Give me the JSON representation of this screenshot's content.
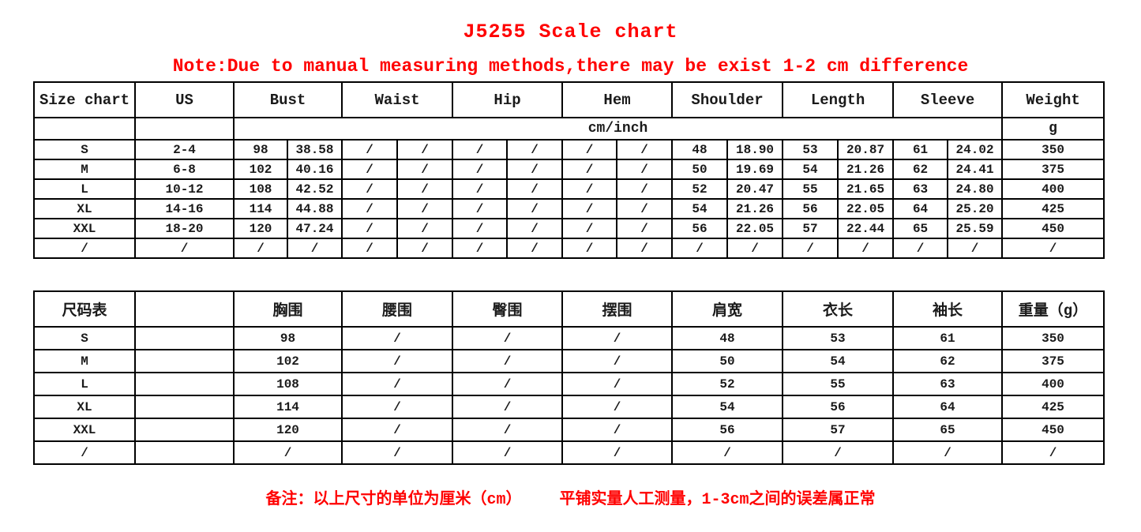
{
  "title": "J5255 Scale chart",
  "note": "Note:Due to manual measuring methods,there may be exist 1-2 cm difference",
  "footer_note": "备注：以上尺寸的单位为厘米（cm）    平铺实量人工测量，1-3cm之间的误差属正常",
  "colors": {
    "accent_red": "#ff0000",
    "text_black": "#1a1a1a",
    "table_border": "#000000"
  },
  "table_en": {
    "header": [
      {
        "label": "Size chart",
        "span": 1
      },
      {
        "label": "US",
        "span": 1
      },
      {
        "label": "Bust",
        "span": 2
      },
      {
        "label": "Waist",
        "span": 2
      },
      {
        "label": "Hip",
        "span": 2
      },
      {
        "label": "Hem",
        "span": 2
      },
      {
        "label": "Shoulder",
        "span": 2
      },
      {
        "label": "Length",
        "span": 2
      },
      {
        "label": "Sleeve",
        "span": 2
      },
      {
        "label": "Weight",
        "span": 1
      }
    ],
    "unit_row": [
      {
        "label": "",
        "span": 1
      },
      {
        "label": "",
        "span": 1
      },
      {
        "label": "cm/inch",
        "span": 14
      },
      {
        "label": "g",
        "span": 1
      }
    ],
    "rows": [
      [
        "S",
        "2-4",
        "98",
        "38.58",
        "/",
        "/",
        "/",
        "/",
        "/",
        "/",
        "48",
        "18.90",
        "53",
        "20.87",
        "61",
        "24.02",
        "350"
      ],
      [
        "M",
        "6-8",
        "102",
        "40.16",
        "/",
        "/",
        "/",
        "/",
        "/",
        "/",
        "50",
        "19.69",
        "54",
        "21.26",
        "62",
        "24.41",
        "375"
      ],
      [
        "L",
        "10-12",
        "108",
        "42.52",
        "/",
        "/",
        "/",
        "/",
        "/",
        "/",
        "52",
        "20.47",
        "55",
        "21.65",
        "63",
        "24.80",
        "400"
      ],
      [
        "XL",
        "14-16",
        "114",
        "44.88",
        "/",
        "/",
        "/",
        "/",
        "/",
        "/",
        "54",
        "21.26",
        "56",
        "22.05",
        "64",
        "25.20",
        "425"
      ],
      [
        "XXL",
        "18-20",
        "120",
        "47.24",
        "/",
        "/",
        "/",
        "/",
        "/",
        "/",
        "56",
        "22.05",
        "57",
        "22.44",
        "65",
        "25.59",
        "450"
      ],
      [
        "/",
        "/",
        "/",
        "/",
        "/",
        "/",
        "/",
        "/",
        "/",
        "/",
        "/",
        "/",
        "/",
        "/",
        "/",
        "/",
        "/"
      ]
    ]
  },
  "table_cn": {
    "header": [
      {
        "label": "尺码表",
        "span": 1
      },
      {
        "label": "",
        "span": 1
      },
      {
        "label": "胸围",
        "span": 1
      },
      {
        "label": "腰围",
        "span": 1
      },
      {
        "label": "臀围",
        "span": 1
      },
      {
        "label": "摆围",
        "span": 1
      },
      {
        "label": "肩宽",
        "span": 1
      },
      {
        "label": "衣长",
        "span": 1
      },
      {
        "label": "袖长",
        "span": 1
      },
      {
        "label": "重量（g）",
        "span": 1
      }
    ],
    "rows": [
      [
        "S",
        "",
        "98",
        "/",
        "/",
        "/",
        "48",
        "53",
        "61",
        "350"
      ],
      [
        "M",
        "",
        "102",
        "/",
        "/",
        "/",
        "50",
        "54",
        "62",
        "375"
      ],
      [
        "L",
        "",
        "108",
        "/",
        "/",
        "/",
        "52",
        "55",
        "63",
        "400"
      ],
      [
        "XL",
        "",
        "114",
        "/",
        "/",
        "/",
        "54",
        "56",
        "64",
        "425"
      ],
      [
        "XXL",
        "",
        "120",
        "/",
        "/",
        "/",
        "56",
        "57",
        "65",
        "450"
      ],
      [
        "/",
        "",
        "/",
        "/",
        "/",
        "/",
        "/",
        "/",
        "/",
        "/"
      ]
    ]
  }
}
